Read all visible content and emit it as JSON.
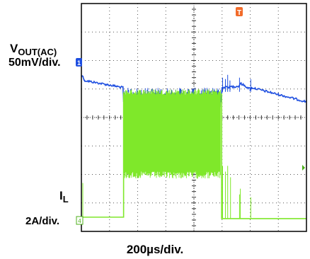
{
  "chart_data": {
    "type": "line",
    "title": "",
    "grid": true,
    "divisions": {
      "x": 8,
      "y": 8
    },
    "xlabel": "200µs/div.",
    "trigger_marker": "T",
    "series": [
      {
        "name_main": "V",
        "name_sub": "OUT(AC)",
        "scale": "50mV/div.",
        "marker": "1",
        "color": "#1f4fe0",
        "coupling": "AC",
        "x_div": [
          0,
          0.06,
          0.1,
          1.48,
          1.5,
          4.96,
          5.0,
          5.6,
          5.65,
          6.0,
          6.05,
          8.0
        ],
        "y_div": [
          5.45,
          5.45,
          5.3,
          5.05,
          4.55,
          4.55,
          5.05,
          5.1,
          5.2,
          5.0,
          5.05,
          4.55
        ]
      },
      {
        "name_main": "I",
        "name_sub": "L",
        "scale": "2A/div.",
        "marker": "4",
        "color": "#7fe82a",
        "x_div": [
          0,
          1.5,
          1.5,
          4.96,
          4.98,
          5.1,
          8.0
        ],
        "y_div": [
          0.5,
          0.5,
          4.1,
          4.1,
          0.5,
          0.45,
          0.45
        ]
      }
    ]
  }
}
